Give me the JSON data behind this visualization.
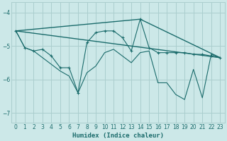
{
  "xlabel": "Humidex (Indice chaleur)",
  "xlim": [
    -0.5,
    23.5
  ],
  "ylim": [
    -7.3,
    -3.7
  ],
  "yticks": [
    -7,
    -6,
    -5,
    -4
  ],
  "xticks": [
    0,
    1,
    2,
    3,
    4,
    5,
    6,
    7,
    8,
    9,
    10,
    11,
    12,
    13,
    14,
    15,
    16,
    17,
    18,
    19,
    20,
    21,
    22,
    23
  ],
  "bg_color": "#cce8e8",
  "grid_color": "#aacece",
  "line_color": "#1a6b6b",
  "font_color": "#1a6b6b",
  "line1_x": [
    0,
    1,
    2,
    3,
    4,
    5,
    6,
    7,
    8,
    9,
    10,
    11,
    12,
    13,
    14,
    15,
    16,
    17,
    18,
    19,
    20,
    21,
    22,
    23
  ],
  "line1_y": [
    -4.55,
    -5.05,
    -5.15,
    -5.1,
    -5.3,
    -5.65,
    -5.65,
    -6.4,
    -4.9,
    -4.6,
    -4.55,
    -4.55,
    -4.75,
    -5.15,
    -4.2,
    -5.05,
    -5.2,
    -5.2,
    -5.2,
    -5.2,
    -5.25,
    -5.25,
    -5.3,
    -5.35
  ],
  "line2_x": [
    0,
    23
  ],
  "line2_y": [
    -4.55,
    -5.35
  ],
  "line3_x": [
    0,
    14,
    23
  ],
  "line3_y": [
    -4.55,
    -4.2,
    -5.35
  ],
  "line4_x": [
    0,
    1,
    2,
    3,
    4,
    5,
    6,
    7,
    8,
    9,
    10,
    11,
    12,
    13,
    14,
    15,
    16,
    17,
    18,
    19,
    20,
    21,
    22,
    23
  ],
  "line4_y": [
    -4.55,
    -5.05,
    -5.15,
    -5.35,
    -5.55,
    -5.75,
    -5.9,
    -6.4,
    -5.8,
    -5.6,
    -5.2,
    -5.1,
    -5.3,
    -5.5,
    -5.2,
    -5.15,
    -6.1,
    -6.1,
    -6.45,
    -6.6,
    -5.7,
    -6.55,
    -5.25,
    -5.35
  ]
}
